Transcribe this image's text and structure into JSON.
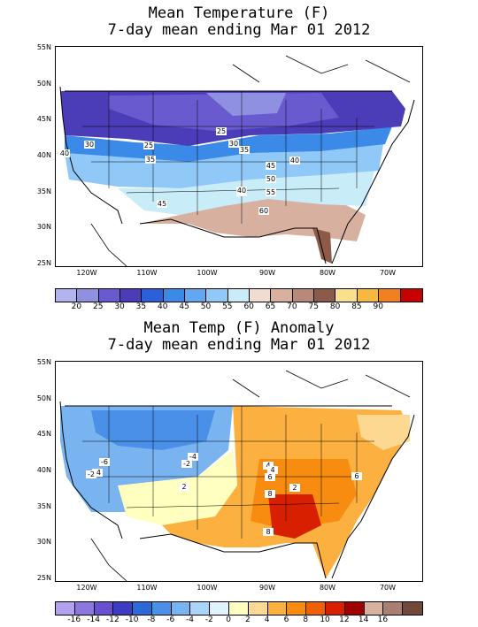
{
  "panel1": {
    "title_line1": "Mean Temperature (F)",
    "title_line2": "7-day mean ending Mar 01 2012",
    "lat_labels": [
      "55N",
      "50N",
      "45N",
      "40N",
      "35N",
      "30N",
      "25N"
    ],
    "lon_labels": [
      "120W",
      "110W",
      "100W",
      "90W",
      "80W",
      "70W"
    ],
    "legend_values": [
      "20",
      "25",
      "30",
      "35",
      "40",
      "45",
      "50",
      "55",
      "60",
      "65",
      "70",
      "75",
      "80",
      "85",
      "90"
    ],
    "legend_colors": [
      "#b3b3f0",
      "#9090e0",
      "#6a5ad0",
      "#4b3cb8",
      "#2c5fd8",
      "#3c8ae8",
      "#62a8f0",
      "#90c8f8",
      "#c8ecf8",
      "#f0dcd0",
      "#d8b0a0",
      "#b88878",
      "#8c5a48",
      "#f8e08c",
      "#f8b840",
      "#f08020",
      "#c80000"
    ],
    "contour_labels": [
      "30",
      "25",
      "25",
      "30",
      "35",
      "35",
      "40",
      "40",
      "45",
      "50",
      "55",
      "40",
      "45",
      "60",
      "40"
    ]
  },
  "panel2": {
    "title_line1": "Mean Temp (F) Anomaly",
    "title_line2": "7-day mean ending Mar 01 2012",
    "lat_labels": [
      "55N",
      "50N",
      "45N",
      "40N",
      "35N",
      "30N",
      "25N"
    ],
    "lon_labels": [
      "120W",
      "110W",
      "100W",
      "90W",
      "80W",
      "70W"
    ],
    "legend_values": [
      "-16",
      "-14",
      "-12",
      "-10",
      "-8",
      "-6",
      "-4",
      "-2",
      "0",
      "2",
      "4",
      "6",
      "8",
      "10",
      "12",
      "14",
      "16"
    ],
    "legend_colors": [
      "#b3a0f0",
      "#8a78e0",
      "#6a50d0",
      "#3c3cc0",
      "#2c68d8",
      "#4a90e8",
      "#7ab4f0",
      "#a8d4f8",
      "#e0f4ff",
      "#ffffc0",
      "#fcd890",
      "#fcb040",
      "#f88c10",
      "#f06000",
      "#d82000",
      "#a00000",
      "#d8b0a0",
      "#a88070",
      "#704838"
    ],
    "contour_labels": [
      "-6",
      "-4",
      "-2",
      "-2",
      "-4",
      "2",
      "2",
      "4",
      "6",
      "6",
      "8",
      "8",
      "4"
    ]
  }
}
